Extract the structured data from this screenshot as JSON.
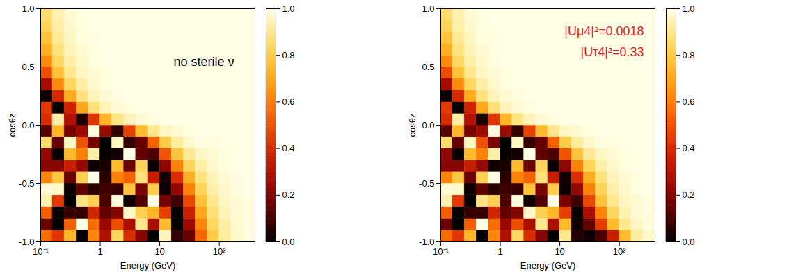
{
  "chart_data": [
    {
      "type": "heatmap",
      "log": "x",
      "xlabel": "Energy (GeV)",
      "ylabel": "cosθz",
      "xlim": [
        0.1,
        398.1
      ],
      "ylim": [
        -1,
        1
      ],
      "xticks": [
        {
          "value": 0.1,
          "label": "10⁻¹"
        },
        1,
        10,
        {
          "value": 100,
          "label": "10²"
        }
      ],
      "yticks": [
        {
          "value": -1,
          "label": "-1.0"
        },
        {
          "value": -0.5,
          "label": "-0.5"
        },
        {
          "value": 0,
          "label": "0.0"
        },
        {
          "value": 0.5,
          "label": "0.5"
        },
        {
          "value": 1,
          "label": "1.0"
        }
      ],
      "annotations": [
        {
          "text": "no sterile ν",
          "color": "#000000"
        }
      ],
      "x_edges": [
        0.1,
        0.158,
        0.251,
        0.398,
        0.631,
        1,
        1.585,
        2.512,
        3.981,
        6.31,
        10,
        15.85,
        25.12,
        39.81,
        63.1,
        100,
        158.5,
        251.2,
        398.1
      ],
      "y_edges": [
        -1,
        -0.9,
        -0.8,
        -0.7,
        -0.6,
        -0.5,
        -0.4,
        -0.3,
        -0.2,
        -0.1,
        0,
        0.1,
        0.2,
        0.3,
        0.4,
        0.5,
        0.6,
        0.7,
        0.8,
        0.9,
        1
      ],
      "cells": [
        [
          0.56,
          0.43,
          0.74,
          0.0,
          0.62,
          0.29,
          0.84,
          0.4,
          0.21,
          0.0,
          0.95,
          0.07,
          0.15,
          0.55,
          0.8,
          0.92,
          0.97,
          0.99
        ],
        [
          0.16,
          0.0,
          0.53,
          1.0,
          0.56,
          0.24,
          0.49,
          0.28,
          0.9,
          0.28,
          0.75,
          0.01,
          0.25,
          0.62,
          0.84,
          0.93,
          0.97,
          0.99
        ],
        [
          0.53,
          0.01,
          0.08,
          0.08,
          0.38,
          0.14,
          0.2,
          0.97,
          0.82,
          0.74,
          0.46,
          0.01,
          0.36,
          0.7,
          0.87,
          0.95,
          0.98,
          0.99
        ],
        [
          0.94,
          0.44,
          0.0,
          0.89,
          0.82,
          0.11,
          0.99,
          0.02,
          0.12,
          1.0,
          0.18,
          0.09,
          0.48,
          0.77,
          0.9,
          0.96,
          0.98,
          0.99
        ],
        [
          0.98,
          0.97,
          0.02,
          0.14,
          0.06,
          0.09,
          0.08,
          0.78,
          0.18,
          0.81,
          0.02,
          0.23,
          0.61,
          0.83,
          0.93,
          0.97,
          0.99,
          1
        ],
        [
          0.62,
          0.79,
          0.16,
          0.82,
          1.0,
          0.06,
          0.61,
          0.54,
          0.88,
          0.35,
          0.03,
          0.41,
          0.72,
          0.88,
          0.95,
          0.98,
          0.99,
          1
        ],
        [
          0.21,
          0.21,
          0.35,
          0.23,
          0.02,
          0.04,
          0.75,
          0.16,
          0.83,
          0.02,
          0.22,
          0.61,
          0.83,
          0.93,
          0.97,
          0.99,
          1,
          1
        ],
        [
          0.23,
          0.01,
          0.75,
          0.61,
          0.93,
          0.01,
          0.03,
          1.0,
          0.14,
          0.11,
          0.51,
          0.78,
          0.91,
          0.96,
          0.98,
          0.99,
          1,
          1
        ],
        [
          0.86,
          0.15,
          0.96,
          0.5,
          0.18,
          0.0,
          0.96,
          0.08,
          0.15,
          0.54,
          0.8,
          0.92,
          0.97,
          0.99,
          0.99,
          1,
          1,
          1
        ],
        [
          0.13,
          0.74,
          0.18,
          0.25,
          0.99,
          0.24,
          0.07,
          0.46,
          0.75,
          0.9,
          0.96,
          0.98,
          0.99,
          1,
          1,
          1,
          1,
          1
        ],
        [
          0.4,
          0.93,
          0.3,
          0.04,
          0.43,
          0.74,
          0.89,
          0.95,
          0.98,
          0.99,
          1,
          1,
          1,
          1,
          1,
          1,
          1,
          1
        ],
        [
          0.44,
          0.01,
          0.37,
          0.7,
          0.87,
          0.95,
          0.98,
          0.99,
          1,
          1,
          1,
          1,
          1,
          1,
          1,
          1,
          1,
          1
        ],
        [
          0.02,
          0.39,
          0.71,
          0.88,
          0.95,
          0.98,
          0.99,
          1,
          1,
          1,
          1,
          1,
          1,
          1,
          1,
          1,
          1,
          1
        ],
        [
          0.27,
          0.63,
          0.84,
          0.93,
          0.97,
          0.99,
          1,
          1,
          1,
          1,
          1,
          1,
          1,
          1,
          1,
          1,
          1,
          1
        ],
        [
          0.49,
          0.77,
          0.9,
          0.96,
          0.98,
          0.99,
          1,
          1,
          1,
          1,
          1,
          1,
          1,
          1,
          1,
          1,
          1,
          1
        ],
        [
          0.63,
          0.84,
          0.93,
          0.97,
          0.99,
          1,
          1,
          1,
          1,
          1,
          1,
          1,
          1,
          1,
          1,
          1,
          1,
          1
        ],
        [
          0.72,
          0.88,
          0.95,
          0.98,
          0.99,
          1,
          1,
          1,
          1,
          1,
          1,
          1,
          1,
          1,
          1,
          1,
          1,
          1
        ],
        [
          0.78,
          0.91,
          0.96,
          0.99,
          0.99,
          1,
          1,
          1,
          1,
          1,
          1,
          1,
          1,
          1,
          1,
          1,
          1,
          1
        ],
        [
          0.83,
          0.93,
          0.97,
          0.99,
          1,
          1,
          1,
          1,
          1,
          1,
          1,
          1,
          1,
          1,
          1,
          1,
          1,
          1
        ],
        [
          0.86,
          0.94,
          0.98,
          0.99,
          1,
          1,
          1,
          1,
          1,
          1,
          1,
          1,
          1,
          1,
          1,
          1,
          1,
          1
        ]
      ],
      "color_range": [
        0,
        1
      ],
      "color_ticks": [
        {
          "value": 0,
          "label": "0.0"
        },
        {
          "value": 0.2,
          "label": "0.2"
        },
        {
          "value": 0.4,
          "label": "0.4"
        },
        {
          "value": 0.6,
          "label": "0.6"
        },
        {
          "value": 0.8,
          "label": "0.8"
        },
        {
          "value": 1,
          "label": "1.0"
        }
      ]
    },
    {
      "type": "heatmap",
      "log": "x",
      "xlabel": "Energy (GeV)",
      "ylabel": "cosθz",
      "xlim": [
        0.1,
        398.1
      ],
      "ylim": [
        -1,
        1
      ],
      "xticks": [
        {
          "value": 0.1,
          "label": "10⁻¹"
        },
        1,
        10,
        {
          "value": 100,
          "label": "10²"
        }
      ],
      "yticks": [
        {
          "value": -1,
          "label": "-1.0"
        },
        {
          "value": -0.5,
          "label": "-0.5"
        },
        {
          "value": 0,
          "label": "0.0"
        },
        {
          "value": 0.5,
          "label": "0.5"
        },
        {
          "value": 1,
          "label": "1.0"
        }
      ],
      "annotations": [
        {
          "text": "|Uμ4|²=0.0018",
          "color": "#e8192c"
        },
        {
          "text": "|Uτ4|²=0.33",
          "color": "#e8192c"
        }
      ],
      "x_edges": [
        0.1,
        0.158,
        0.251,
        0.398,
        0.631,
        1,
        1.585,
        2.512,
        3.981,
        6.31,
        10,
        15.85,
        25.12,
        39.81,
        63.1,
        100,
        158.5,
        251.2,
        398.1
      ],
      "y_edges": [
        -1,
        -0.9,
        -0.8,
        -0.7,
        -0.6,
        -0.5,
        -0.4,
        -0.3,
        -0.2,
        -0.1,
        0,
        0.1,
        0.2,
        0.3,
        0.4,
        0.5,
        0.6,
        0.7,
        0.8,
        0.9,
        1
      ],
      "cells": [
        [
          0.56,
          0.43,
          0.74,
          0.0,
          0.62,
          0.29,
          0.84,
          0.4,
          0.21,
          0.0,
          0.9,
          0.05,
          0.02,
          0.1,
          0.35,
          0.75,
          0.92,
          0.97
        ],
        [
          0.16,
          0.0,
          0.53,
          1.0,
          0.56,
          0.24,
          0.49,
          0.28,
          0.9,
          0.28,
          0.75,
          0.02,
          0.15,
          0.45,
          0.75,
          0.9,
          0.96,
          0.99
        ],
        [
          0.53,
          0.01,
          0.08,
          0.08,
          0.38,
          0.14,
          0.2,
          0.97,
          0.82,
          0.74,
          0.46,
          0.01,
          0.28,
          0.62,
          0.84,
          0.94,
          0.98,
          0.99
        ],
        [
          0.94,
          0.44,
          0.0,
          0.89,
          0.82,
          0.11,
          0.99,
          0.02,
          0.12,
          1.0,
          0.18,
          0.09,
          0.48,
          0.77,
          0.9,
          0.96,
          0.98,
          0.99
        ],
        [
          0.98,
          0.97,
          0.02,
          0.14,
          0.06,
          0.09,
          0.08,
          0.78,
          0.18,
          0.81,
          0.02,
          0.23,
          0.61,
          0.83,
          0.93,
          0.97,
          0.99,
          1
        ],
        [
          0.62,
          0.79,
          0.16,
          0.82,
          1.0,
          0.06,
          0.61,
          0.54,
          0.88,
          0.35,
          0.03,
          0.41,
          0.72,
          0.88,
          0.95,
          0.98,
          0.99,
          1
        ],
        [
          0.21,
          0.21,
          0.35,
          0.23,
          0.02,
          0.04,
          0.75,
          0.16,
          0.83,
          0.02,
          0.22,
          0.61,
          0.83,
          0.93,
          0.97,
          0.99,
          1,
          1
        ],
        [
          0.23,
          0.01,
          0.75,
          0.61,
          0.93,
          0.01,
          0.03,
          1.0,
          0.14,
          0.11,
          0.51,
          0.78,
          0.91,
          0.96,
          0.98,
          0.99,
          1,
          1
        ],
        [
          0.86,
          0.15,
          0.96,
          0.5,
          0.18,
          0.0,
          0.96,
          0.08,
          0.15,
          0.54,
          0.8,
          0.92,
          0.97,
          0.99,
          0.99,
          1,
          1,
          1
        ],
        [
          0.13,
          0.74,
          0.18,
          0.25,
          0.99,
          0.24,
          0.07,
          0.46,
          0.75,
          0.9,
          0.96,
          0.98,
          0.99,
          1,
          1,
          1,
          1,
          1
        ],
        [
          0.4,
          0.93,
          0.3,
          0.04,
          0.43,
          0.74,
          0.89,
          0.95,
          0.98,
          0.99,
          1,
          1,
          1,
          1,
          1,
          1,
          1,
          1
        ],
        [
          0.44,
          0.01,
          0.37,
          0.7,
          0.87,
          0.95,
          0.98,
          0.99,
          1,
          1,
          1,
          1,
          1,
          1,
          1,
          1,
          1,
          1
        ],
        [
          0.02,
          0.39,
          0.71,
          0.88,
          0.95,
          0.98,
          0.99,
          1,
          1,
          1,
          1,
          1,
          1,
          1,
          1,
          1,
          1,
          1
        ],
        [
          0.27,
          0.63,
          0.84,
          0.93,
          0.97,
          0.99,
          1,
          1,
          1,
          1,
          1,
          1,
          1,
          1,
          1,
          1,
          1,
          1
        ],
        [
          0.49,
          0.77,
          0.9,
          0.96,
          0.98,
          0.99,
          1,
          1,
          1,
          1,
          1,
          1,
          1,
          1,
          1,
          1,
          1,
          1
        ],
        [
          0.63,
          0.84,
          0.93,
          0.97,
          0.99,
          1,
          1,
          1,
          1,
          1,
          1,
          1,
          1,
          1,
          1,
          1,
          1,
          1
        ],
        [
          0.72,
          0.88,
          0.95,
          0.98,
          0.99,
          1,
          1,
          1,
          1,
          1,
          1,
          1,
          1,
          1,
          1,
          1,
          1,
          1
        ],
        [
          0.78,
          0.91,
          0.96,
          0.99,
          0.99,
          1,
          1,
          1,
          1,
          1,
          1,
          1,
          1,
          1,
          1,
          1,
          1,
          1
        ],
        [
          0.83,
          0.93,
          0.97,
          0.99,
          1,
          1,
          1,
          1,
          1,
          1,
          1,
          1,
          1,
          1,
          1,
          1,
          1,
          1
        ],
        [
          0.86,
          0.94,
          0.98,
          0.99,
          1,
          1,
          1,
          1,
          1,
          1,
          1,
          1,
          1,
          1,
          1,
          1,
          1,
          1
        ]
      ],
      "color_range": [
        0,
        1
      ],
      "color_ticks": [
        {
          "value": 0,
          "label": "0.0"
        },
        {
          "value": 0.2,
          "label": "0.2"
        },
        {
          "value": 0.4,
          "label": "0.4"
        },
        {
          "value": 0.6,
          "label": "0.6"
        },
        {
          "value": 0.8,
          "label": "0.8"
        },
        {
          "value": 1,
          "label": "1.0"
        }
      ]
    }
  ]
}
